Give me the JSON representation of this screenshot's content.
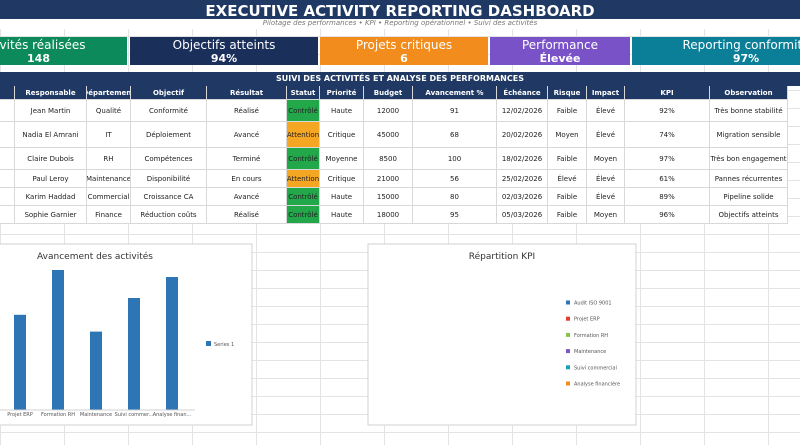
{
  "header": {
    "title": "EXECUTIVE ACTIVITY REPORTING DASHBOARD",
    "subtitle": "Pilotage des performances • KPI • Reporting opérationnel • Suivi des activités"
  },
  "kpi_cards": [
    {
      "label": "tivités réalisées",
      "value": 148,
      "color": "#0d8a5c"
    },
    {
      "label": "Objectifs atteints",
      "value": "94%",
      "color": "#1b2f5b"
    },
    {
      "label": "Projets critiques",
      "value": 6,
      "color": "#f28c1c"
    },
    {
      "label": "Performance",
      "value": "Élevée",
      "color": "#7a52c7"
    },
    {
      "label": "Reporting conformité",
      "value": "97%",
      "color": "#0b7f98"
    }
  ],
  "table": {
    "title": "SUIVI DES ACTIVITÉS ET ANALYSE DES PERFORMANCES",
    "columns": [
      "Responsable",
      "Département",
      "Objectif",
      "Résultat",
      "Statut",
      "Priorité",
      "Budget",
      "Avancement %",
      "Échéance",
      "Risque",
      "Impact",
      "KPI",
      "Observation"
    ],
    "rows": [
      [
        "Jean Martin",
        "Qualité",
        "Conformité",
        "Réalisé",
        "Contrôlé",
        "Haute",
        12000,
        91,
        "12/02/2026",
        "Faible",
        "Élevé",
        "92%",
        "Très bonne stabilité"
      ],
      [
        "Nadia El Amrani",
        "IT",
        "Déploiement",
        "Avancé",
        "Attention",
        "Critique",
        45000,
        68,
        "20/02/2026",
        "Moyen",
        "Élevé",
        "74%",
        "Migration sensible"
      ],
      [
        "Claire Dubois",
        "RH",
        "Compétences",
        "Terminé",
        "Contrôlé",
        "Moyenne",
        8500,
        100,
        "18/02/2026",
        "Faible",
        "Moyen",
        "97%",
        "Très bon engagement"
      ],
      [
        "Paul Leroy",
        "Maintenance",
        "Disponibilité",
        "En cours",
        "Attention",
        "Critique",
        21000,
        56,
        "25/02/2026",
        "Élevé",
        "Élevé",
        "61%",
        "Pannes récurrentes"
      ],
      [
        "Karim Haddad",
        "Commercial",
        "Croissance CA",
        "Avancé",
        "Contrôlé",
        "Haute",
        15000,
        80,
        "02/03/2026",
        "Faible",
        "Élevé",
        "89%",
        "Pipeline solide"
      ],
      [
        "Sophie Garnier",
        "Finance",
        "Réduction coûts",
        "Réalisé",
        "Contrôlé",
        "Haute",
        18000,
        95,
        "05/03/2026",
        "Faible",
        "Moyen",
        "96%",
        "Objectifs atteints"
      ]
    ],
    "status_colors": [
      "#22a84a",
      "#f5a623",
      "#22a84a",
      "#f5a623",
      "#22a84a",
      "#22a84a"
    ]
  },
  "bar_chart": {
    "type": "bar",
    "title": "Avancement des activités",
    "categories": [
      "Projet ERP",
      "Formation RH",
      "Maintenance",
      "Suivi commer...",
      "Analyse finan..."
    ],
    "series": [
      {
        "name": "Series 1",
        "color": "#2e75b6",
        "values": [
          68,
          100,
          56,
          80,
          95
        ]
      }
    ],
    "ylim": [
      0,
      100
    ]
  },
  "pie_chart": {
    "type": "pie",
    "title": "Répartition KPI",
    "legend": [
      {
        "name": "Audit ISO 9001",
        "color": "#2e75b6"
      },
      {
        "name": "Projet ERP",
        "color": "#e03c31"
      },
      {
        "name": "Formation RH",
        "color": "#8bc34a"
      },
      {
        "name": "Maintenance",
        "color": "#7e57c2"
      },
      {
        "name": "Suivi commercial",
        "color": "#17a2b8"
      },
      {
        "name": "Analyse financière",
        "color": "#f28c1c"
      }
    ]
  }
}
